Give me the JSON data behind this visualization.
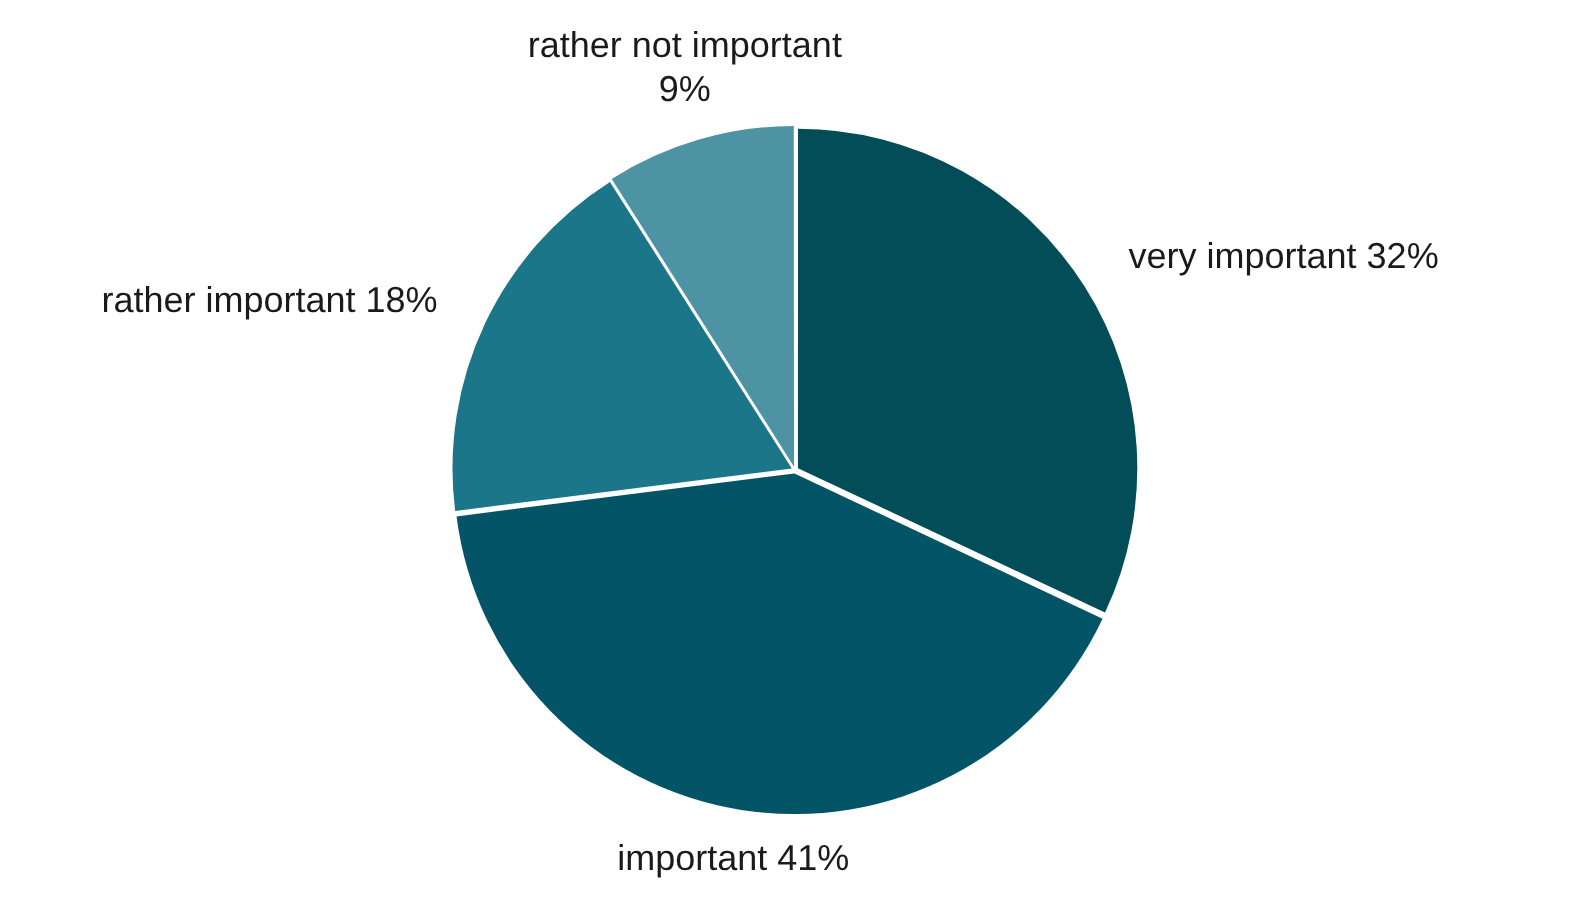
{
  "chart_data": {
    "type": "pie",
    "categories": [
      "very important",
      "important",
      "rather important",
      "rather not important"
    ],
    "values": [
      32,
      41,
      18,
      9
    ],
    "colors": [
      "#024d57",
      "#045468",
      "#1c7689",
      "#4e93a3"
    ],
    "value_labels": [
      "32%",
      "41%",
      "18%",
      "9%"
    ],
    "legend": false
  }
}
